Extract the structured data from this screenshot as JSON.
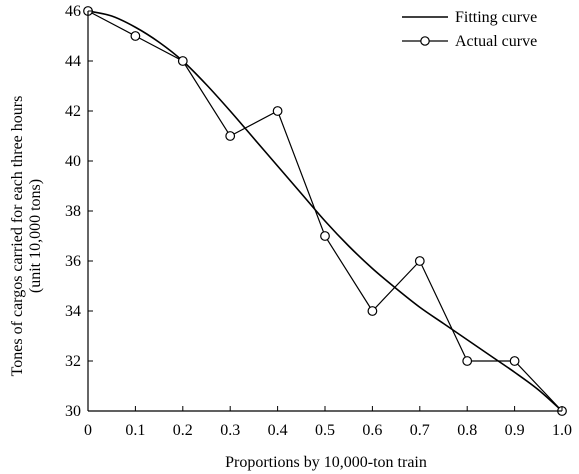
{
  "chart_data": {
    "type": "line",
    "title": "",
    "xlabel": "Proportions by 10,000-ton train",
    "ylabel": "Tones of cargos carried for each three hours",
    "ylabel_unit": "(unit 10,000 tons)",
    "xlim": [
      0,
      1.0
    ],
    "ylim": [
      30,
      46
    ],
    "x_ticks": [
      "0",
      "0.1",
      "0.2",
      "0.3",
      "0.4",
      "0.5",
      "0.6",
      "0.7",
      "0.8",
      "0.9",
      "1.0"
    ],
    "y_ticks": [
      "30",
      "32",
      "34",
      "36",
      "38",
      "40",
      "42",
      "44",
      "46"
    ],
    "grid": false,
    "legend_position": "top-right",
    "series": [
      {
        "name": "Fitting curve",
        "style": "smooth-line",
        "x": [
          0,
          0.05,
          0.1,
          0.15,
          0.2,
          0.25,
          0.3,
          0.35,
          0.4,
          0.45,
          0.5,
          0.55,
          0.6,
          0.65,
          0.7,
          0.75,
          0.8,
          0.85,
          0.9,
          0.95,
          1.0
        ],
        "values": [
          46.0,
          45.8,
          45.35,
          44.75,
          44.0,
          43.05,
          42.0,
          40.9,
          39.8,
          38.7,
          37.6,
          36.6,
          35.7,
          34.9,
          34.15,
          33.5,
          32.85,
          32.2,
          31.55,
          30.85,
          30.0
        ]
      },
      {
        "name": "Actual curve",
        "style": "line-with-markers",
        "x": [
          0,
          0.1,
          0.2,
          0.3,
          0.4,
          0.5,
          0.6,
          0.7,
          0.8,
          0.9,
          1.0
        ],
        "values": [
          46,
          45,
          44,
          41,
          42,
          37,
          34,
          36,
          32,
          32,
          30
        ]
      }
    ]
  }
}
